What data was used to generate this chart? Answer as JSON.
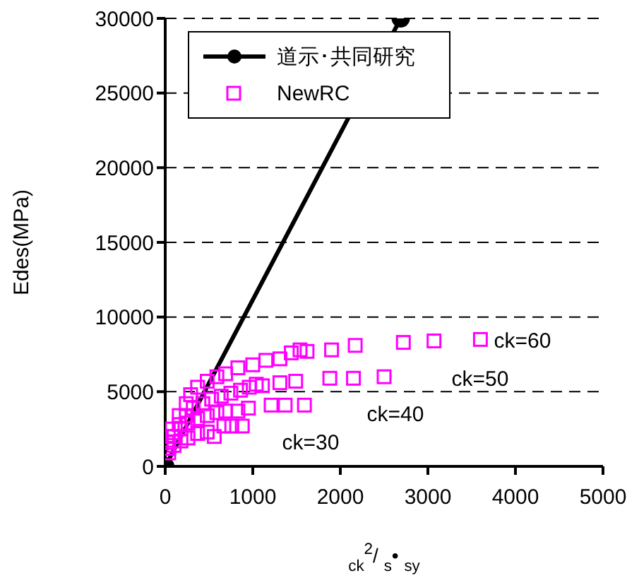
{
  "chart_data": {
    "type": "scatter",
    "xlabel": "$_{ck}$$^{2}$/ $_{s}$• $_{sy}$",
    "ylabel": "Edes(MPa)",
    "xlim": [
      0,
      5000
    ],
    "xticks": [
      0,
      1000,
      2000,
      3000,
      4000,
      5000
    ],
    "ylim": [
      0,
      30000
    ],
    "yticks": [
      0,
      5000,
      10000,
      15000,
      20000,
      25000,
      30000
    ],
    "grid": "y",
    "legend": "top left",
    "series": [
      {
        "name": "道示･共同研究",
        "type": "line",
        "color": "#000000",
        "marker": "circle",
        "line_style": "solid",
        "x": [
          0,
          2690
        ],
        "values": [
          0,
          30000
        ]
      },
      {
        "name": "NewRC",
        "color": "#ff00ff",
        "marker": "square",
        "x": [
          3600,
          3070,
          2720,
          2170,
          1900,
          1620,
          1540,
          1440,
          1310,
          1150,
          1000,
          830,
          690,
          590,
          480,
          370,
          290,
          240,
          160,
          80,
          20,
          2500,
          2150,
          1880,
          1490,
          1310,
          1110,
          1040,
          960,
          860,
          750,
          640,
          530,
          430,
          320,
          240,
          160,
          80,
          20,
          1590,
          1370,
          1210,
          950,
          830,
          690,
          590,
          480,
          370,
          260,
          180,
          100,
          40,
          880,
          760,
          670,
          560,
          480,
          370,
          260,
          180,
          100,
          40
        ],
        "values": [
          8500,
          8400,
          8300,
          8100,
          7800,
          7700,
          7800,
          7600,
          7200,
          7100,
          6800,
          6600,
          6200,
          6000,
          5700,
          5300,
          4800,
          4200,
          3400,
          2500,
          1600,
          6000,
          5900,
          5900,
          5700,
          5600,
          5400,
          5500,
          5300,
          5100,
          4900,
          4700,
          4500,
          4200,
          3900,
          3400,
          2800,
          2000,
          1200,
          4100,
          4100,
          4100,
          3900,
          3700,
          3700,
          3600,
          3400,
          3200,
          2900,
          2500,
          2000,
          1200,
          2700,
          2700,
          2700,
          2000,
          2300,
          2200,
          1900,
          1700,
          1400,
          900
        ]
      }
    ],
    "annotations": [
      "ck=60",
      "ck=50",
      "ck=40",
      "ck=30"
    ]
  }
}
